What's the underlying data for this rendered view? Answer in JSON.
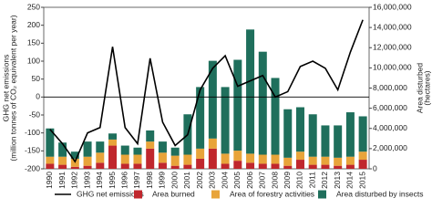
{
  "chart_data": {
    "type": "bar_line",
    "ylabel_lines": [
      "GHG net emissions",
      "(million tonnes of CO₂ equivalent per year)"
    ],
    "y2label_lines": [
      "Area disturbed",
      "(hectares)"
    ],
    "categories": [
      "1990",
      "1991",
      "1992",
      "1993",
      "1994",
      "1995",
      "1996",
      "1997",
      "1998",
      "1999",
      "2000",
      "2001",
      "2002",
      "2003",
      "2004",
      "2005",
      "2006",
      "2007",
      "2008",
      "2009",
      "2010",
      "2011",
      "2012",
      "2013",
      "2014",
      "2015"
    ],
    "ylim": [
      -200,
      250
    ],
    "yticks": [
      -200,
      -150,
      -100,
      -50,
      0,
      50,
      100,
      150,
      200,
      250
    ],
    "y2lim": [
      0,
      16000000
    ],
    "y2ticks": [
      {
        "value": 0,
        "label": "0"
      },
      {
        "value": 2000000,
        "label": "2,000,000"
      },
      {
        "value": 4000000,
        "label": "4,000,000"
      },
      {
        "value": 6000000,
        "label": "6,000,000"
      },
      {
        "value": 8000000,
        "label": "8,000,000"
      },
      {
        "value": 10000000,
        "label": "10,000,000"
      },
      {
        "value": 12000000,
        "label": "12,000,000"
      },
      {
        "value": 14000000,
        "label": "14,000,000"
      },
      {
        "value": 16000000,
        "label": "16,000,000"
      }
    ],
    "series": [
      {
        "name": "GHG net emissions",
        "type": "line",
        "color": "#000000",
        "axis": "y",
        "values": [
          -90,
          -130,
          -180,
          -100,
          -85,
          140,
          -85,
          -130,
          108,
          -70,
          -135,
          -105,
          20,
          80,
          115,
          30,
          45,
          60,
          0,
          15,
          85,
          100,
          80,
          20,
          125,
          215
        ]
      },
      {
        "name": "Area burned",
        "type": "bar",
        "color": "#c0272d",
        "axis": "y2",
        "values": [
          500000,
          400000,
          200000,
          300000,
          600000,
          2300000,
          500000,
          500000,
          2000000,
          600000,
          300000,
          400000,
          1000000,
          2000000,
          500000,
          800000,
          600000,
          500000,
          500000,
          300000,
          900000,
          400000,
          400000,
          300000,
          400000,
          900000
        ]
      },
      {
        "name": "Area of forestry activities",
        "type": "bar",
        "color": "#e8a43a",
        "axis": "y2",
        "values": [
          700000,
          800000,
          800000,
          900000,
          1000000,
          600000,
          900000,
          900000,
          700000,
          1000000,
          1000000,
          1000000,
          1000000,
          1000000,
          1000000,
          1000000,
          900000,
          900000,
          900000,
          800000,
          800000,
          800000,
          800000,
          800000,
          800000,
          800000
        ]
      },
      {
        "name": "Area disturbed by insects",
        "type": "bar",
        "color": "#1f6f5c",
        "axis": "y2",
        "values": [
          2800000,
          1400000,
          700000,
          1500000,
          1100000,
          600000,
          900000,
          700000,
          1100000,
          1100000,
          800000,
          4000000,
          6100000,
          7700000,
          6600000,
          9000000,
          12300000,
          10200000,
          7600000,
          4800000,
          4400000,
          4200000,
          3100000,
          3200000,
          4400000,
          3500000
        ]
      }
    ]
  }
}
